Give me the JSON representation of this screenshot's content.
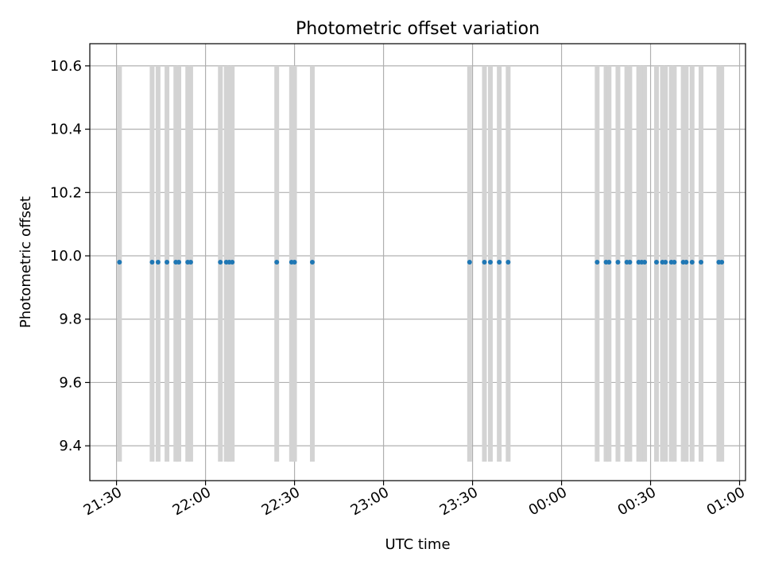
{
  "chart_data": {
    "type": "scatter",
    "title": "Photometric offset variation",
    "xlabel": "UTC time",
    "ylabel": "Photometric offset",
    "x_tick_labels": [
      "21:30",
      "22:00",
      "22:30",
      "23:00",
      "23:30",
      "00:00",
      "00:30",
      "01:00"
    ],
    "y_tick_labels": [
      "9.4",
      "9.6",
      "9.8",
      "10.0",
      "10.2",
      "10.4",
      "10.6"
    ],
    "ylim": [
      9.29,
      10.67
    ],
    "xlim_minutes_from_2130": [
      -9,
      212
    ],
    "grid": true,
    "legend": "none",
    "point_color": "#1f77b4",
    "errorbar_color": "#d3d3d3",
    "series": [
      {
        "x": [
          "21:31",
          "21:42",
          "21:44",
          "21:47",
          "21:50",
          "21:51",
          "21:54",
          "21:55",
          "22:05",
          "22:07",
          "22:08",
          "22:09",
          "22:24",
          "22:29",
          "22:30",
          "22:36",
          "23:29",
          "23:34",
          "23:36",
          "23:39",
          "23:42",
          "00:12",
          "00:15",
          "00:16",
          "00:19",
          "00:22",
          "00:23",
          "00:26",
          "00:27",
          "00:28",
          "00:32",
          "00:34",
          "00:35",
          "00:37",
          "00:38",
          "00:41",
          "00:42",
          "00:44",
          "00:47",
          "00:53",
          "00:54"
        ],
        "y": [
          9.98,
          9.98,
          9.98,
          9.98,
          9.98,
          9.98,
          9.98,
          9.98,
          9.98,
          9.98,
          9.98,
          9.98,
          9.98,
          9.98,
          9.98,
          9.98,
          9.98,
          9.98,
          9.98,
          9.98,
          9.98,
          9.98,
          9.98,
          9.98,
          9.98,
          9.98,
          9.98,
          9.98,
          9.98,
          9.98,
          9.98,
          9.98,
          9.98,
          9.98,
          9.98,
          9.98,
          9.98,
          9.98,
          9.98,
          9.98,
          9.98
        ],
        "yerr_low": 9.35,
        "yerr_high": 10.6
      }
    ]
  }
}
